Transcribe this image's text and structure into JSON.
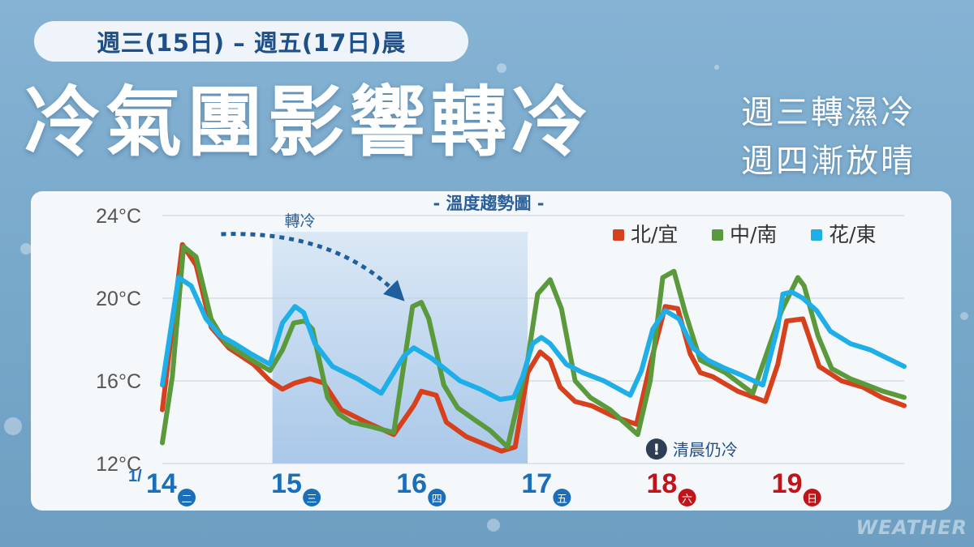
{
  "header": {
    "date_range": "週三(15日) – 週五(17日)晨",
    "title": "冷氣團影響轉冷",
    "subtitle_line1": "週三轉濕冷",
    "subtitle_line2": "週四漸放晴"
  },
  "watermark": "WEATHER",
  "colors": {
    "north": "#d6401c",
    "central": "#5a9a3c",
    "east": "#1eaee8",
    "weekday_blue": "#1a6fb8",
    "weekend_red": "#c0141a",
    "annotation": "#1f5f9e"
  },
  "chart_data": {
    "type": "line",
    "title": "- 溫度趨勢圖 -",
    "ylim": [
      12,
      24
    ],
    "y_ticks": [
      "12°C",
      "16°C",
      "20°C",
      "24°C"
    ],
    "y_tick_values": [
      12,
      16,
      20,
      24
    ],
    "x_unit": "day",
    "xlim": [
      14.0,
      19.93
    ],
    "grid": true,
    "legend_position": "top-right",
    "days": [
      {
        "day": 14,
        "month_prefix": "1/",
        "label": "14",
        "weekday": "二",
        "weekend": false
      },
      {
        "day": 15,
        "month_prefix": "",
        "label": "15",
        "weekday": "三",
        "weekend": false
      },
      {
        "day": 16,
        "month_prefix": "",
        "label": "16",
        "weekday": "四",
        "weekend": false
      },
      {
        "day": 17,
        "month_prefix": "",
        "label": "17",
        "weekday": "五",
        "weekend": false
      },
      {
        "day": 18,
        "month_prefix": "",
        "label": "18",
        "weekday": "六",
        "weekend": true
      },
      {
        "day": 19,
        "month_prefix": "",
        "label": "19",
        "weekday": "日",
        "weekend": true
      }
    ],
    "shaded_range": [
      14.88,
      16.92
    ],
    "trend_label": "轉冷",
    "trend_arrow": {
      "from": [
        14.47,
        23.1
      ],
      "to": [
        15.88,
        20.2
      ]
    },
    "note": {
      "icon": "!",
      "text": "清晨仍冷",
      "at": [
        17.95,
        12.7
      ]
    },
    "series": [
      {
        "name": "北/宜",
        "color": "#d6401c",
        "x": [
          14.0,
          14.16,
          14.27,
          14.39,
          14.53,
          14.73,
          14.86,
          14.96,
          15.06,
          15.18,
          15.29,
          15.43,
          15.63,
          15.85,
          16.01,
          16.07,
          16.19,
          16.27,
          16.43,
          16.59,
          16.71,
          16.82,
          16.92,
          17.02,
          17.1,
          17.18,
          17.3,
          17.43,
          17.6,
          17.79,
          17.9,
          18.02,
          18.12,
          18.22,
          18.3,
          18.4,
          18.6,
          18.82,
          18.92,
          18.99,
          19.12,
          19.25,
          19.43,
          19.6,
          19.75,
          19.93
        ],
        "y": [
          14.6,
          22.6,
          21.6,
          18.6,
          17.6,
          16.8,
          16.0,
          15.6,
          15.9,
          16.1,
          15.9,
          14.6,
          14.0,
          13.4,
          14.8,
          15.5,
          15.3,
          14.0,
          13.3,
          12.9,
          12.6,
          12.8,
          16.4,
          17.4,
          17.0,
          15.7,
          15.0,
          14.8,
          14.3,
          13.9,
          16.8,
          19.6,
          19.5,
          17.3,
          16.4,
          16.2,
          15.5,
          15.0,
          16.8,
          18.9,
          19.0,
          16.7,
          16.0,
          15.7,
          15.2,
          14.8
        ]
      },
      {
        "name": "中/南",
        "color": "#5a9a3c",
        "x": [
          14.0,
          14.08,
          14.17,
          14.27,
          14.39,
          14.51,
          14.69,
          14.86,
          14.96,
          15.05,
          15.14,
          15.2,
          15.32,
          15.41,
          15.51,
          15.66,
          15.85,
          16.0,
          16.07,
          16.13,
          16.25,
          16.36,
          16.5,
          16.62,
          16.76,
          16.92,
          17.0,
          17.1,
          17.19,
          17.3,
          17.42,
          17.58,
          17.8,
          17.9,
          18.0,
          18.09,
          18.18,
          18.3,
          18.5,
          18.72,
          18.95,
          19.08,
          19.13,
          19.24,
          19.35,
          19.5,
          19.63,
          19.76,
          19.93
        ],
        "y": [
          13.0,
          16.2,
          22.5,
          22.0,
          19.0,
          17.8,
          17.1,
          16.5,
          17.5,
          18.8,
          18.9,
          18.5,
          15.2,
          14.4,
          14.0,
          13.8,
          13.5,
          19.6,
          19.8,
          19.0,
          15.8,
          14.7,
          14.1,
          13.6,
          12.8,
          17.0,
          20.2,
          20.9,
          19.5,
          16.0,
          15.2,
          14.6,
          13.4,
          16.0,
          21.0,
          21.3,
          19.3,
          17.0,
          16.4,
          15.4,
          19.4,
          21.0,
          20.6,
          18.2,
          16.6,
          16.1,
          15.8,
          15.5,
          15.2
        ]
      },
      {
        "name": "花/東",
        "color": "#1eaee8",
        "x": [
          14.0,
          14.13,
          14.23,
          14.35,
          14.46,
          14.58,
          14.71,
          14.86,
          14.96,
          15.06,
          15.13,
          15.22,
          15.36,
          15.56,
          15.75,
          15.93,
          16.01,
          16.15,
          16.38,
          16.54,
          16.7,
          16.81,
          16.88,
          16.96,
          17.03,
          17.1,
          17.23,
          17.36,
          17.53,
          17.74,
          17.83,
          17.92,
          18.02,
          18.13,
          18.24,
          18.36,
          18.5,
          18.62,
          18.8,
          18.92,
          18.96,
          19.03,
          19.12,
          19.23,
          19.34,
          19.5,
          19.66,
          19.93
        ],
        "y": [
          15.8,
          21.0,
          20.6,
          19.0,
          18.2,
          17.8,
          17.3,
          16.8,
          18.8,
          19.6,
          19.3,
          17.8,
          16.7,
          16.1,
          15.4,
          17.2,
          17.6,
          17.1,
          16.0,
          15.6,
          15.1,
          15.2,
          16.2,
          17.8,
          18.1,
          17.8,
          16.8,
          16.4,
          16.0,
          15.3,
          16.5,
          18.5,
          19.4,
          19.0,
          17.6,
          17.0,
          16.6,
          16.3,
          15.8,
          18.6,
          20.2,
          20.3,
          20.0,
          19.4,
          18.4,
          17.8,
          17.5,
          16.7
        ]
      }
    ]
  }
}
